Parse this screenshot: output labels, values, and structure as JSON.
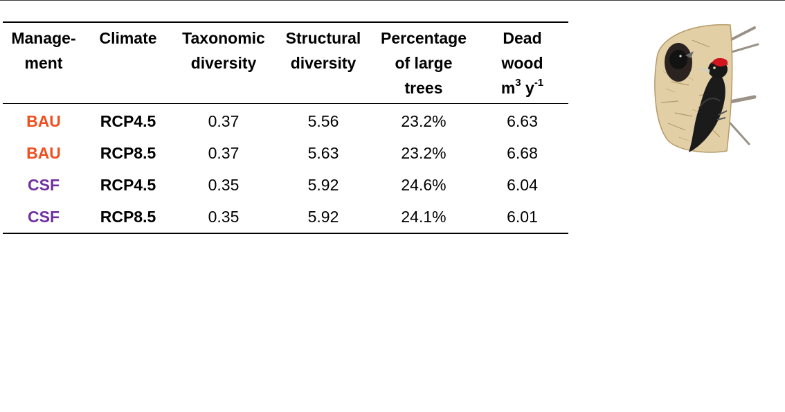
{
  "table": {
    "headers": [
      {
        "lines": [
          "Manage-",
          "ment"
        ]
      },
      {
        "lines": [
          "Climate"
        ]
      },
      {
        "lines": [
          "Taxonomic",
          "diversity"
        ]
      },
      {
        "lines": [
          "Structural",
          "diversity"
        ]
      },
      {
        "lines": [
          "Percentage",
          "of large",
          "trees"
        ]
      },
      {
        "lines": [
          "Dead",
          "wood"
        ],
        "unit_base": "m",
        "unit_exp1": "3",
        "unit_mid": " y",
        "unit_exp2": "-1"
      }
    ],
    "rows": [
      {
        "management": "BAU",
        "climate": "RCP4.5",
        "taxonomic": "0.37",
        "structural": "5.56",
        "large_trees": "23.2%",
        "dead_wood": "6.63"
      },
      {
        "management": "BAU",
        "climate": "RCP8.5",
        "taxonomic": "0.37",
        "structural": "5.63",
        "large_trees": "23.2%",
        "dead_wood": "6.68"
      },
      {
        "management": "CSF",
        "climate": "RCP4.5",
        "taxonomic": "0.35",
        "structural": "5.92",
        "large_trees": "24.6%",
        "dead_wood": "6.04"
      },
      {
        "management": "CSF",
        "climate": "RCP8.5",
        "taxonomic": "0.35",
        "structural": "5.92",
        "large_trees": "24.1%",
        "dead_wood": "6.01"
      }
    ]
  },
  "colors": {
    "BAU": "#f04e1e",
    "CSF": "#7030a0"
  },
  "illustration": {
    "icon": "woodpecker-illustration-icon"
  }
}
